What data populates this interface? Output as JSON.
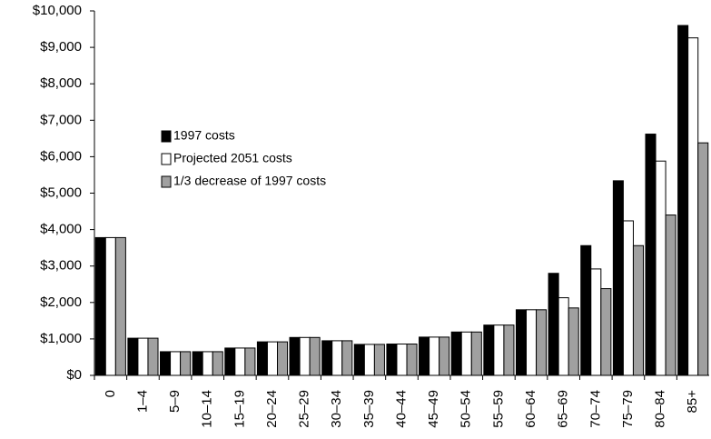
{
  "chart_data": {
    "type": "bar",
    "categories": [
      "0",
      "1–4",
      "5–9",
      "10–14",
      "15–19",
      "20–24",
      "25–29",
      "30–34",
      "35–39",
      "40–44",
      "45–49",
      "50–54",
      "55–59",
      "60–64",
      "65–69",
      "70–74",
      "75–79",
      "80–84",
      "85+"
    ],
    "series": [
      {
        "name": "1997 costs",
        "color": "#000000",
        "values": [
          3780,
          1020,
          650,
          650,
          750,
          920,
          1040,
          950,
          850,
          860,
          1050,
          1190,
          1380,
          1800,
          2800,
          3560,
          5340,
          6620,
          9600
        ]
      },
      {
        "name": "Projected 2051 costs",
        "color": "#ffffff",
        "values": [
          3780,
          1020,
          650,
          650,
          750,
          920,
          1040,
          950,
          850,
          860,
          1050,
          1190,
          1380,
          1800,
          2130,
          2920,
          4240,
          5880,
          9260
        ]
      },
      {
        "name": "1/3 decrease of 1997 costs",
        "color": "#a0a0a0",
        "values": [
          3780,
          1020,
          650,
          650,
          750,
          920,
          1040,
          950,
          850,
          860,
          1050,
          1190,
          1380,
          1800,
          1850,
          2380,
          3560,
          4400,
          6380
        ]
      }
    ],
    "ylim": [
      0,
      10000
    ],
    "yticks": [
      {
        "value": 0,
        "label": "$0"
      },
      {
        "value": 1000,
        "label": "$1,000"
      },
      {
        "value": 2000,
        "label": "$2,000"
      },
      {
        "value": 3000,
        "label": "$3,000"
      },
      {
        "value": 4000,
        "label": "$4,000"
      },
      {
        "value": 5000,
        "label": "$5,000"
      },
      {
        "value": 6000,
        "label": "$6,000"
      },
      {
        "value": 7000,
        "label": "$7,000"
      },
      {
        "value": 8000,
        "label": "$8,000"
      },
      {
        "value": 9000,
        "label": "$9,000"
      },
      {
        "value": 10000,
        "label": "$10,000"
      }
    ],
    "grid": false
  }
}
